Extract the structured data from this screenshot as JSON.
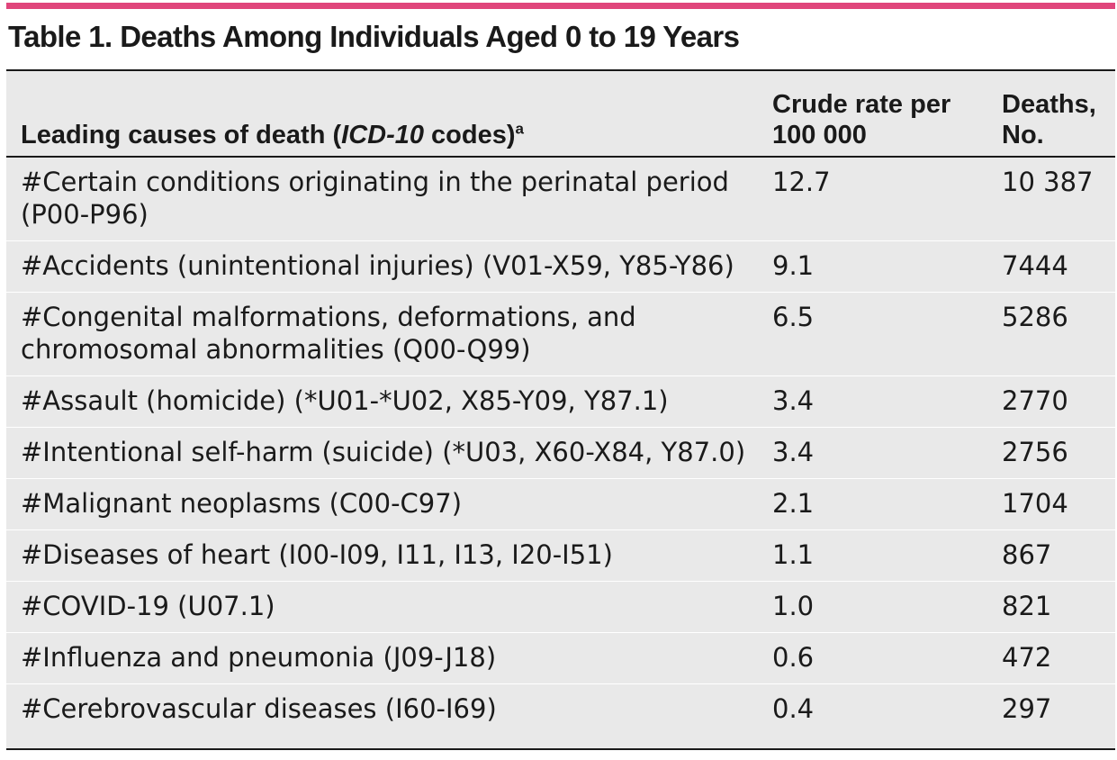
{
  "title": "Table 1. Deaths Among Individuals Aged 0 to 19 Years",
  "accent_color": "#e0457b",
  "table_bg_color": "#e9e9e9",
  "headers": {
    "cause_prefix": "Leading causes of death (",
    "cause_italic": "ICD-10",
    "cause_suffix": " codes)",
    "cause_footnote": "a",
    "rate_line1": "Crude rate per",
    "rate_line2": "100 000",
    "deaths_line1": "Deaths,",
    "deaths_line2": "No."
  },
  "rows": [
    {
      "cause": "#Certain conditions originating in the perinatal period\n(P00-P96)",
      "rate": "12.7",
      "deaths": "10 387"
    },
    {
      "cause": "#Accidents (unintentional injuries) (V01-X59, Y85-Y86)",
      "rate": "9.1",
      "deaths": "7444"
    },
    {
      "cause": "#Congenital malformations, deformations, and\nchromosomal abnormalities (Q00-Q99)",
      "rate": "6.5",
      "deaths": "5286"
    },
    {
      "cause": "#Assault (homicide) (*U01-*U02, X85-Y09, Y87.1)",
      "rate": "3.4",
      "deaths": "2770"
    },
    {
      "cause": "#Intentional self-harm (suicide) (*U03, X60-X84, Y87.0)",
      "rate": "3.4",
      "deaths": "2756"
    },
    {
      "cause": "#Malignant neoplasms (C00-C97)",
      "rate": "2.1",
      "deaths": "1704"
    },
    {
      "cause": "#Diseases of heart (I00-I09, I11, I13, I20-I51)",
      "rate": "1.1",
      "deaths": "867"
    },
    {
      "cause": "#COVID-19 (U07.1)",
      "rate": "1.0",
      "deaths": "821"
    },
    {
      "cause": "#Influenza and pneumonia (J09-J18)",
      "rate": "0.6",
      "deaths": "472"
    },
    {
      "cause": "#Cerebrovascular diseases (I60-I69)",
      "rate": "0.4",
      "deaths": "297"
    }
  ]
}
